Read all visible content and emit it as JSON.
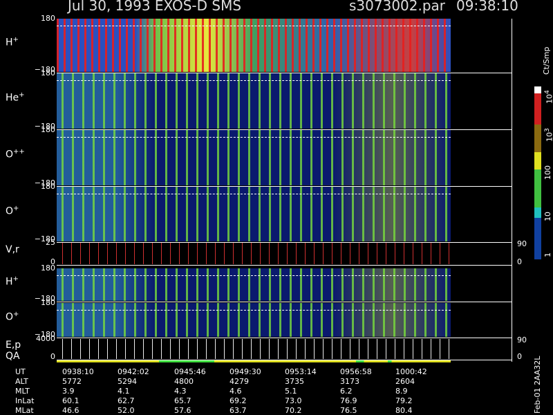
{
  "header": {
    "title": "Jul 30, 1993   EXOS-D SMS",
    "file": "s3073002.par",
    "time": "09:38:10"
  },
  "panels": [
    {
      "label": "H",
      "sup": "+",
      "left_ticks": [
        "180",
        "−180"
      ]
    },
    {
      "label": "He",
      "sup": "+",
      "left_ticks": [
        "180",
        "−180"
      ]
    },
    {
      "label": "O",
      "sup": "++",
      "left_ticks": [
        "180",
        "−180"
      ]
    },
    {
      "label": "O",
      "sup": "+",
      "left_ticks": [
        "180",
        "−180"
      ]
    },
    {
      "label": "V,r",
      "sup": "",
      "left_ticks": [
        "25",
        "0"
      ],
      "right_ticks": [
        "90",
        "0"
      ]
    },
    {
      "label": "H",
      "sup": "+",
      "left_ticks": [
        "180",
        "−180"
      ]
    },
    {
      "label": "O",
      "sup": "+",
      "left_ticks": [
        "180",
        "−180"
      ]
    },
    {
      "label": "E,p",
      "label2": "QA",
      "sup": "",
      "left_ticks": [
        "4000",
        "0"
      ],
      "right_ticks": [
        "90",
        "0"
      ]
    }
  ],
  "colorbar": {
    "unit": "Ct/Smp",
    "ticks": [
      {
        "base": "10",
        "sup": "4"
      },
      {
        "base": "10",
        "sup": "3"
      },
      {
        "base": "100",
        "sup": ""
      },
      {
        "base": "10",
        "sup": ""
      },
      {
        "base": "1",
        "sup": ""
      }
    ]
  },
  "table": {
    "rows": [
      [
        "UT",
        "0938:10",
        "0942:02",
        "0945:46",
        "0949:30",
        "0953:14",
        "0956:58",
        "1000:42"
      ],
      [
        "ALT",
        "5772",
        "5294",
        "4800",
        "4279",
        "3735",
        "3173",
        "2604"
      ],
      [
        "MLT",
        "3.9",
        "4.1",
        "4.3",
        "4.6",
        "5.1",
        "6.2",
        "8.9"
      ],
      [
        "InLat",
        "60.1",
        "62.7",
        "65.7",
        "69.2",
        "73.0",
        "76.9",
        "79.2"
      ],
      [
        "MLat",
        "46.6",
        "52.0",
        "57.6",
        "63.7",
        "70.2",
        "76.5",
        "80.4"
      ]
    ]
  },
  "footer": {
    "stamp": "Feb-01 2AA32L"
  }
}
